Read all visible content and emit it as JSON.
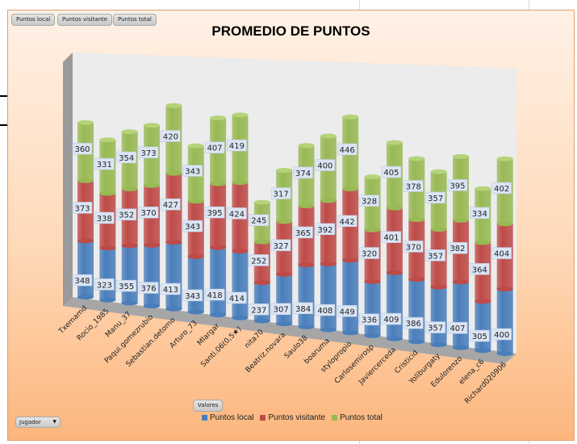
{
  "field_buttons": [
    "Puntos local",
    "Puntos visitante",
    "Puntos total"
  ],
  "values_button": "Valores",
  "axis_dropdown": {
    "label": "Jugador",
    "arrow": "▼"
  },
  "colors": {
    "local": "#4a7ebb",
    "visitante": "#be4b48",
    "total": "#98b954"
  },
  "chart_data": {
    "type": "bar",
    "stacked": true,
    "style": "3d-cylinder",
    "title": "PROMEDIO DE PUNTOS",
    "xlabel": "",
    "ylabel": "",
    "legend_position": "bottom",
    "grid": false,
    "categories": [
      "Txemamd",
      "Rocio_1985",
      "Manu_37",
      "Paqui.gomezrubio",
      "Sebastian.detomo",
      "Arturo_73",
      "Mlargar",
      "Santi.06(0,5★)",
      "nita70",
      "Beatriz.novara",
      "Saulo38",
      "boaruma",
      "stylopropio",
      "Carlosemirosp",
      "Javiercerceda",
      "Cristicid",
      "Yoliburgaty",
      "Edulorenzo",
      "elena_c6",
      "Richard020906"
    ],
    "series": [
      {
        "name": "Puntos local",
        "values": [
          348,
          323,
          355,
          376,
          413,
          343,
          418,
          414,
          237,
          307,
          384,
          408,
          449,
          336,
          409,
          386,
          357,
          407,
          305,
          400
        ]
      },
      {
        "name": "Puntos visitante",
        "values": [
          373,
          338,
          352,
          370,
          427,
          343,
          395,
          424,
          252,
          327,
          365,
          392,
          442,
          320,
          401,
          370,
          357,
          382,
          364,
          404
        ]
      },
      {
        "name": "Puntos total",
        "values": [
          360,
          331,
          354,
          373,
          420,
          343,
          407,
          419,
          245,
          317,
          374,
          400,
          446,
          328,
          405,
          378,
          357,
          395,
          334,
          402
        ]
      }
    ]
  }
}
